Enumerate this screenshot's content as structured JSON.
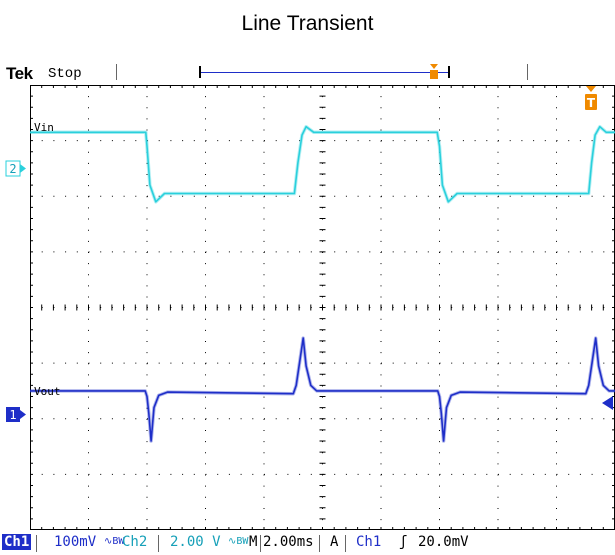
{
  "title": "Line Transient",
  "scope": {
    "brand": "Tek",
    "state": "Stop",
    "trigger_marker_glyph": "T",
    "ch2_marker": "2",
    "ch1_marker": "1"
  },
  "readout": {
    "ch1_tag": "Ch1",
    "ch1_scale": "100mV",
    "ch1_bw": "∿BW",
    "ch2_tag": "Ch2",
    "ch2_scale": "2.00 V",
    "ch2_bw": "∿BW",
    "timebase_tag": "M",
    "timebase": "2.00ms",
    "trig_mode": "A",
    "trig_source": "Ch1",
    "trig_slope": "ʃ",
    "trig_level": "20.0mV"
  },
  "colors": {
    "ch1": "#1e2ec8",
    "ch2": "#2ad0dc",
    "trigger": "#f08a00",
    "grid": "#000000"
  },
  "chart_data": {
    "type": "line",
    "title": "Line Transient",
    "x_unit": "div",
    "xlim": [
      0,
      10
    ],
    "ylim": [
      -4,
      4
    ],
    "grid": true,
    "divisions": {
      "x": 10,
      "y": 8
    },
    "series": [
      {
        "name": "Vin",
        "color": "#2ad0dc",
        "x": [
          0,
          1.98,
          2.0,
          2.05,
          2.15,
          2.3,
          4.52,
          4.58,
          4.65,
          4.72,
          4.85,
          6.96,
          7.0,
          7.05,
          7.15,
          7.3,
          9.55,
          9.6,
          9.66,
          9.74,
          9.85,
          10
        ],
        "y": [
          3.15,
          3.15,
          2.9,
          2.2,
          1.9,
          2.05,
          2.05,
          2.6,
          3.1,
          3.25,
          3.15,
          3.15,
          2.9,
          2.2,
          1.9,
          2.05,
          2.05,
          2.6,
          3.1,
          3.25,
          3.15,
          3.15
        ]
      },
      {
        "name": "Vout",
        "color": "#1e2ec8",
        "x": [
          0,
          1.97,
          2.0,
          2.03,
          2.07,
          2.12,
          2.2,
          2.35,
          4.5,
          4.55,
          4.62,
          4.67,
          4.72,
          4.8,
          4.9,
          6.97,
          7.0,
          7.03,
          7.07,
          7.12,
          7.2,
          7.35,
          9.5,
          9.55,
          9.62,
          9.67,
          9.72,
          9.8,
          9.9,
          10
        ],
        "y": [
          -1.5,
          -1.5,
          -1.6,
          -1.9,
          -2.4,
          -1.8,
          -1.58,
          -1.52,
          -1.55,
          -1.4,
          -0.9,
          -0.55,
          -1.05,
          -1.4,
          -1.5,
          -1.5,
          -1.6,
          -1.9,
          -2.4,
          -1.8,
          -1.58,
          -1.52,
          -1.55,
          -1.4,
          -0.9,
          -0.55,
          -1.05,
          -1.4,
          -1.5,
          -1.5
        ]
      }
    ]
  }
}
